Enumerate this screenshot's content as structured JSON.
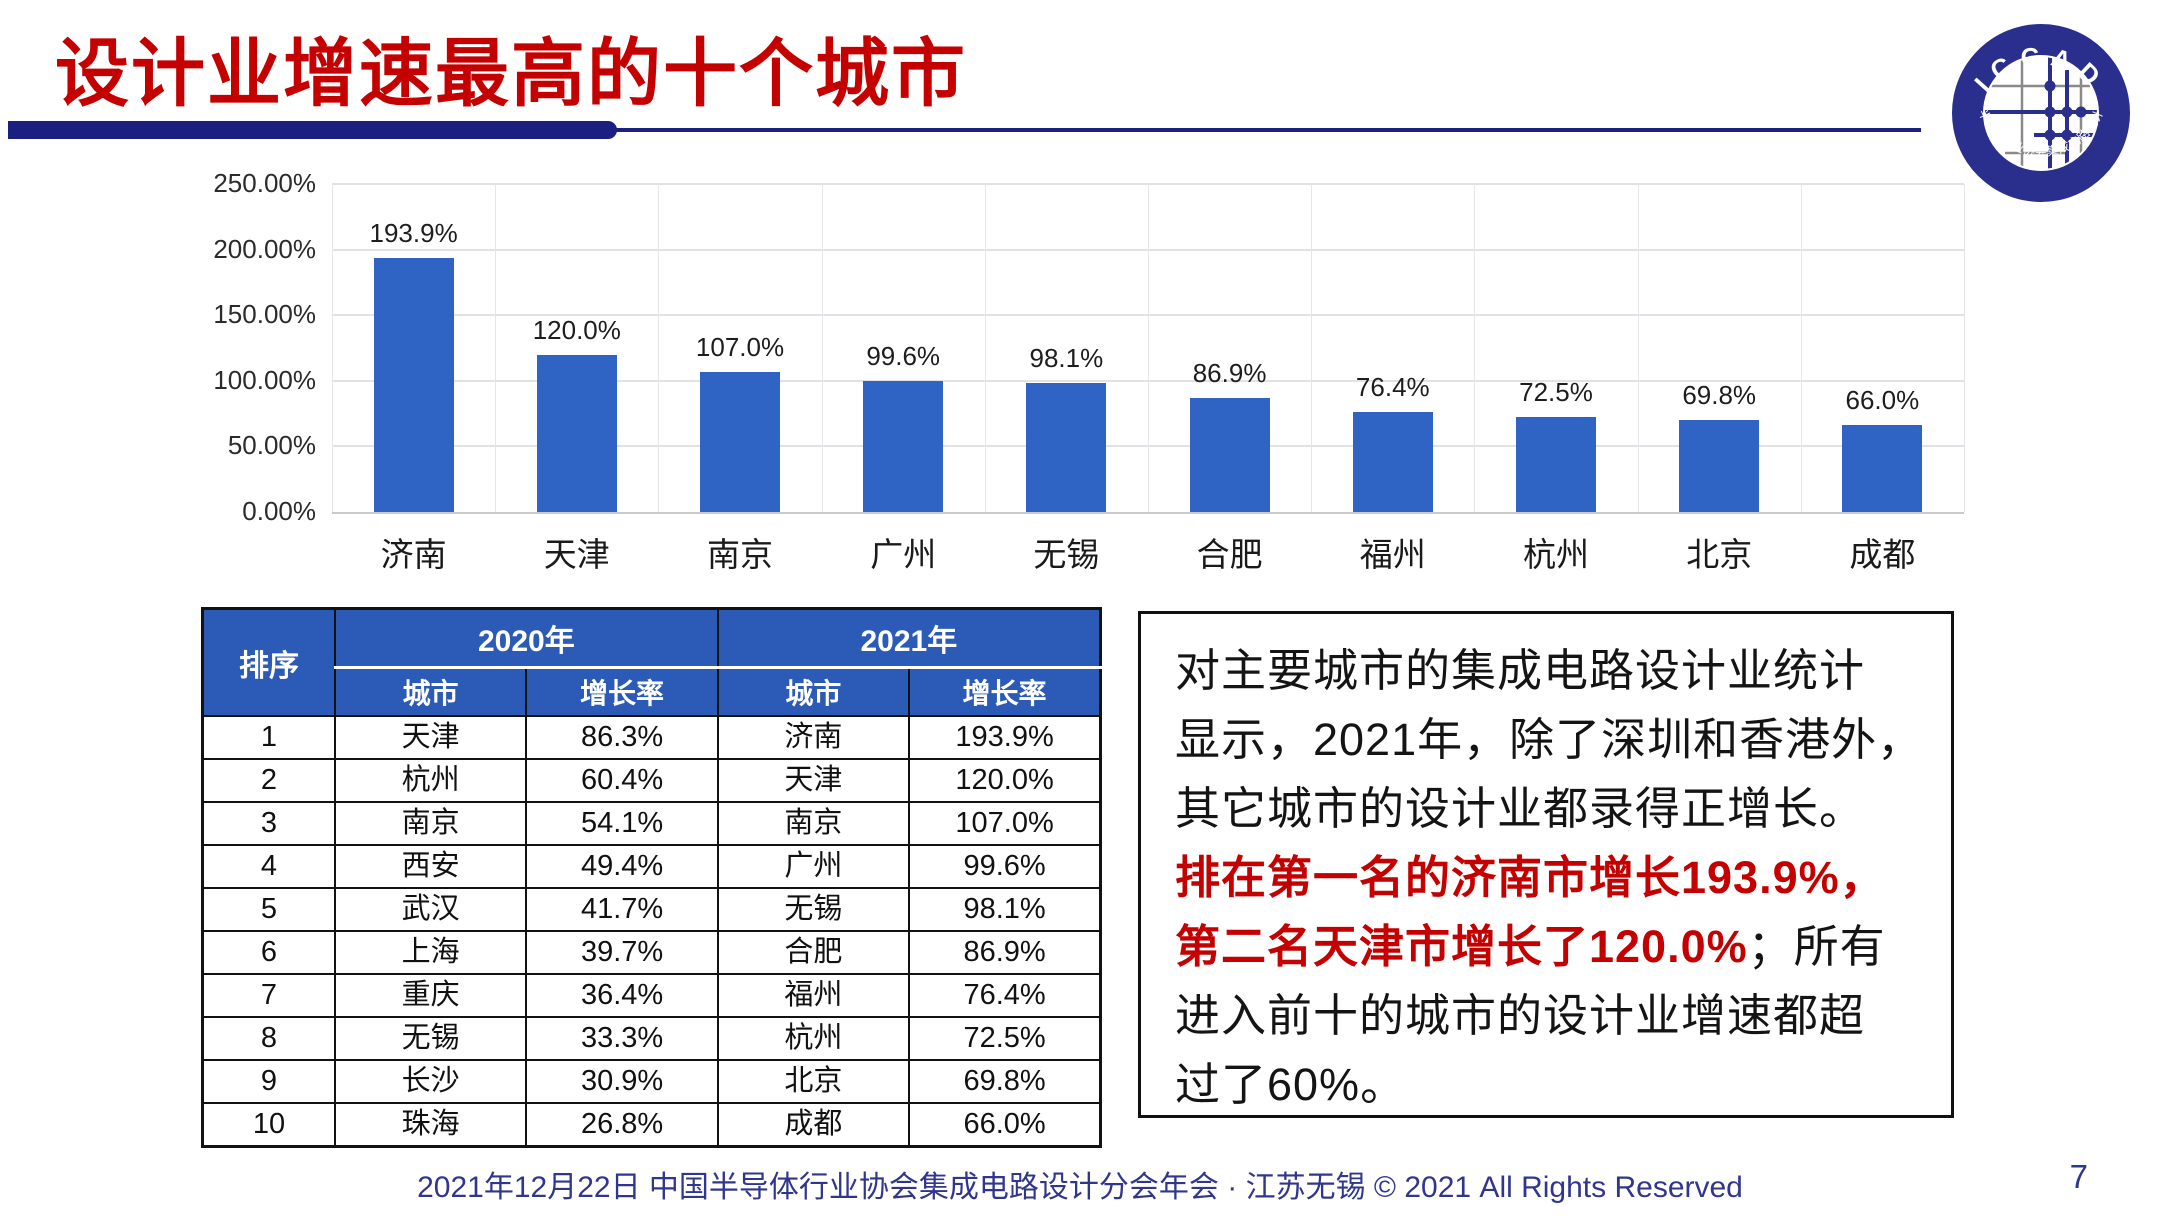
{
  "title": "设计业增速最高的十个城市",
  "colors": {
    "title_red": "#C40000",
    "accent_navy": "#1B2080",
    "bar_blue": "#3064C4",
    "table_header_blue": "#2B5BB7",
    "footer_blue": "#31368D"
  },
  "logo": {
    "arc_top": "ICCAD",
    "arc_bottom": "中国半导体行业协会集成电路设计分会"
  },
  "chart_data": {
    "type": "bar",
    "title": "",
    "categories": [
      "济南",
      "天津",
      "南京",
      "广州",
      "无锡",
      "合肥",
      "福州",
      "杭州",
      "北京",
      "成都"
    ],
    "values": [
      193.9,
      120.0,
      107.0,
      99.6,
      98.1,
      86.9,
      76.4,
      72.5,
      69.8,
      66.0
    ],
    "value_labels": [
      "193.9%",
      "120.0%",
      "107.0%",
      "99.6%",
      "98.1%",
      "86.9%",
      "76.4%",
      "72.5%",
      "69.8%",
      "66.0%"
    ],
    "xlabel": "",
    "ylabel": "",
    "ylim": [
      0,
      250
    ],
    "y_ticks": [
      "0.00%",
      "50.00%",
      "100.00%",
      "150.00%",
      "200.00%",
      "250.00%"
    ],
    "grid": true,
    "legend": "none",
    "bar_color": "#3064C4"
  },
  "table": {
    "col_rank": "排序",
    "col_2020": "2020年",
    "col_2021": "2021年",
    "col_city": "城市",
    "col_growth": "增长率",
    "rows": [
      [
        "1",
        "天津",
        "86.3%",
        "济南",
        "193.9%"
      ],
      [
        "2",
        "杭州",
        "60.4%",
        "天津",
        "120.0%"
      ],
      [
        "3",
        "南京",
        "54.1%",
        "南京",
        "107.0%"
      ],
      [
        "4",
        "西安",
        "49.4%",
        "广州",
        "99.6%"
      ],
      [
        "5",
        "武汉",
        "41.7%",
        "无锡",
        "98.1%"
      ],
      [
        "6",
        "上海",
        "39.7%",
        "合肥",
        "86.9%"
      ],
      [
        "7",
        "重庆",
        "36.4%",
        "福州",
        "76.4%"
      ],
      [
        "8",
        "无锡",
        "33.3%",
        "杭州",
        "72.5%"
      ],
      [
        "9",
        "长沙",
        "30.9%",
        "北京",
        "69.8%"
      ],
      [
        "10",
        "珠海",
        "26.8%",
        "成都",
        "66.0%"
      ]
    ]
  },
  "note": {
    "lines": [
      {
        "segments": [
          {
            "t": "对主要城市的集成电路设计业统计",
            "red": false
          }
        ]
      },
      {
        "segments": [
          {
            "t": "显示，2021年，除了深圳和香港外，",
            "red": false
          }
        ]
      },
      {
        "segments": [
          {
            "t": "其它城市的设计业都录得正增长。",
            "red": false
          }
        ]
      },
      {
        "segments": [
          {
            "t": "排在第一名的济南市增长193.9%，",
            "red": true
          }
        ]
      },
      {
        "segments": [
          {
            "t": "第二名天津市增长了120.0%",
            "red": true
          },
          {
            "t": "；所有",
            "red": false
          }
        ]
      },
      {
        "segments": [
          {
            "t": "进入前十的城市的设计业增速都超",
            "red": false
          }
        ]
      },
      {
        "segments": [
          {
            "t": "过了60%。",
            "red": false
          }
        ]
      }
    ]
  },
  "footer": {
    "text": "2021年12月22日 中国半导体行业协会集成电路设计分会年会 · 江苏无锡 © 2021 All Rights Reserved",
    "page": "7"
  }
}
